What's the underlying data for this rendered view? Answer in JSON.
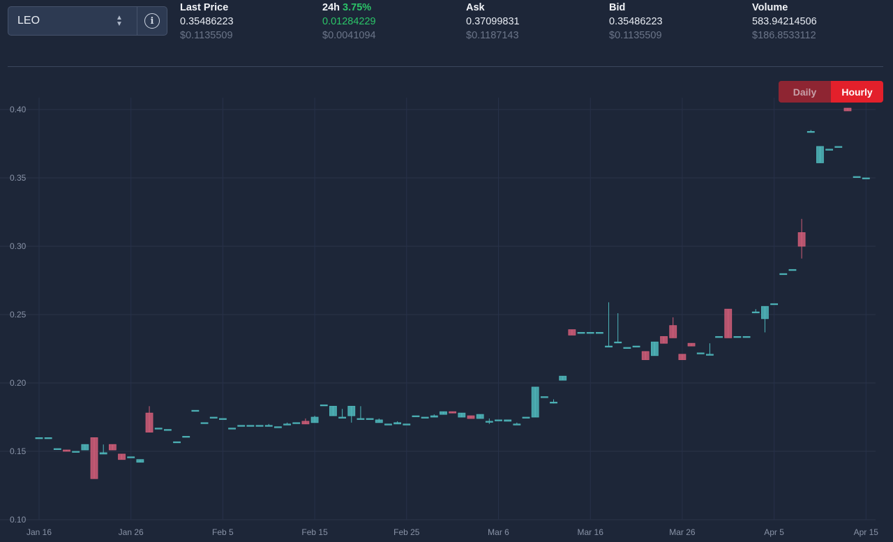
{
  "selector": {
    "symbol": "LEO",
    "chevron_icon": "chevron-up-down-icon",
    "info_icon": "info-icon"
  },
  "stats": {
    "last_price": {
      "label": "Last Price",
      "value": "0.35486223",
      "usd": "$0.1135509"
    },
    "change_24h": {
      "label": "24h",
      "percent": "3.75%",
      "value": "0.01284229",
      "usd": "$0.0041094"
    },
    "ask": {
      "label": "Ask",
      "value": "0.37099831",
      "usd": "$0.1187143"
    },
    "bid": {
      "label": "Bid",
      "value": "0.35486223",
      "usd": "$0.1135509"
    },
    "volume": {
      "label": "Volume",
      "value": "583.94214506",
      "usd": "$186.8533112"
    }
  },
  "toggle": {
    "daily_label": "Daily",
    "hourly_label": "Hourly",
    "active": "hourly"
  },
  "colors": {
    "up": "#4fb8bc",
    "down": "#d05d78",
    "accent": "#e3202b",
    "positive_text": "#2bc468"
  },
  "chart_data": {
    "type": "candlestick",
    "ylim": [
      0.1,
      0.4
    ],
    "y_ticks": [
      "0.10",
      "0.15",
      "0.20",
      "0.25",
      "0.30",
      "0.35",
      "0.40"
    ],
    "x_ticks": [
      {
        "label": "Jan 16",
        "day": 0
      },
      {
        "label": "Jan 26",
        "day": 10
      },
      {
        "label": "Feb 5",
        "day": 20
      },
      {
        "label": "Feb 15",
        "day": 30
      },
      {
        "label": "Feb 25",
        "day": 40
      },
      {
        "label": "Mar 6",
        "day": 50
      },
      {
        "label": "Mar 16",
        "day": 60
      },
      {
        "label": "Mar 26",
        "day": 70
      },
      {
        "label": "Apr 5",
        "day": 80
      },
      {
        "label": "Apr 15",
        "day": 90
      }
    ],
    "grid": true,
    "candles": [
      [
        0,
        0.16,
        0.16,
        0.16,
        0.16
      ],
      [
        1,
        0.16,
        0.16,
        0.16,
        0.16
      ],
      [
        2,
        0.152,
        0.152,
        0.152,
        0.152
      ],
      [
        3,
        0.151,
        0.151,
        0.15,
        0.15
      ],
      [
        4,
        0.15,
        0.15,
        0.15,
        0.15
      ],
      [
        5,
        0.151,
        0.155,
        0.151,
        0.155
      ],
      [
        6,
        0.16,
        0.16,
        0.13,
        0.13
      ],
      [
        7,
        0.148,
        0.155,
        0.148,
        0.149
      ],
      [
        8,
        0.155,
        0.155,
        0.151,
        0.151
      ],
      [
        9,
        0.148,
        0.148,
        0.144,
        0.144
      ],
      [
        10,
        0.146,
        0.146,
        0.146,
        0.146
      ],
      [
        11,
        0.142,
        0.144,
        0.142,
        0.144
      ],
      [
        12,
        0.178,
        0.183,
        0.164,
        0.164
      ],
      [
        13,
        0.167,
        0.167,
        0.167,
        0.167
      ],
      [
        14,
        0.166,
        0.166,
        0.166,
        0.166
      ],
      [
        15,
        0.157,
        0.157,
        0.157,
        0.157
      ],
      [
        16,
        0.161,
        0.161,
        0.161,
        0.161
      ],
      [
        17,
        0.18,
        0.18,
        0.18,
        0.18
      ],
      [
        18,
        0.171,
        0.171,
        0.171,
        0.171
      ],
      [
        19,
        0.175,
        0.175,
        0.175,
        0.175
      ],
      [
        20,
        0.174,
        0.174,
        0.174,
        0.174
      ],
      [
        21,
        0.167,
        0.167,
        0.167,
        0.167
      ],
      [
        22,
        0.169,
        0.169,
        0.169,
        0.169
      ],
      [
        23,
        0.169,
        0.169,
        0.169,
        0.169
      ],
      [
        24,
        0.169,
        0.169,
        0.169,
        0.169
      ],
      [
        25,
        0.169,
        0.17,
        0.169,
        0.169
      ],
      [
        26,
        0.168,
        0.168,
        0.168,
        0.168
      ],
      [
        27,
        0.17,
        0.171,
        0.17,
        0.17
      ],
      [
        28,
        0.171,
        0.171,
        0.171,
        0.171
      ],
      [
        29,
        0.172,
        0.174,
        0.17,
        0.17
      ],
      [
        30,
        0.171,
        0.176,
        0.171,
        0.175
      ],
      [
        31,
        0.184,
        0.184,
        0.184,
        0.184
      ],
      [
        32,
        0.176,
        0.183,
        0.176,
        0.183
      ],
      [
        33,
        0.175,
        0.181,
        0.175,
        0.175
      ],
      [
        34,
        0.176,
        0.183,
        0.171,
        0.183
      ],
      [
        35,
        0.174,
        0.183,
        0.174,
        0.174
      ],
      [
        36,
        0.174,
        0.174,
        0.174,
        0.174
      ],
      [
        37,
        0.171,
        0.174,
        0.171,
        0.173
      ],
      [
        38,
        0.17,
        0.17,
        0.17,
        0.17
      ],
      [
        39,
        0.17,
        0.172,
        0.17,
        0.171
      ],
      [
        40,
        0.17,
        0.17,
        0.17,
        0.17
      ],
      [
        41,
        0.176,
        0.176,
        0.176,
        0.176
      ],
      [
        42,
        0.175,
        0.175,
        0.175,
        0.175
      ],
      [
        43,
        0.175,
        0.177,
        0.175,
        0.176
      ],
      [
        44,
        0.177,
        0.179,
        0.177,
        0.179
      ],
      [
        45,
        0.179,
        0.179,
        0.178,
        0.178
      ],
      [
        46,
        0.175,
        0.178,
        0.175,
        0.178
      ],
      [
        47,
        0.176,
        0.176,
        0.174,
        0.174
      ],
      [
        48,
        0.174,
        0.177,
        0.174,
        0.177
      ],
      [
        49,
        0.172,
        0.174,
        0.17,
        0.172
      ],
      [
        50,
        0.173,
        0.173,
        0.173,
        0.173
      ],
      [
        51,
        0.172,
        0.172,
        0.172,
        0.173
      ],
      [
        52,
        0.17,
        0.171,
        0.17,
        0.17
      ],
      [
        53,
        0.175,
        0.175,
        0.175,
        0.175
      ],
      [
        54,
        0.175,
        0.197,
        0.175,
        0.197
      ],
      [
        55,
        0.19,
        0.19,
        0.19,
        0.19
      ],
      [
        56,
        0.186,
        0.188,
        0.185,
        0.186
      ],
      [
        57,
        0.202,
        0.205,
        0.202,
        0.205
      ],
      [
        58,
        0.239,
        0.239,
        0.235,
        0.235
      ],
      [
        59,
        0.237,
        0.237,
        0.237,
        0.237
      ],
      [
        60,
        0.237,
        0.237,
        0.237,
        0.237
      ],
      [
        61,
        0.237,
        0.237,
        0.237,
        0.237
      ],
      [
        62,
        0.227,
        0.259,
        0.227,
        0.227
      ],
      [
        63,
        0.23,
        0.251,
        0.23,
        0.23
      ],
      [
        64,
        0.226,
        0.226,
        0.226,
        0.226
      ],
      [
        65,
        0.227,
        0.227,
        0.227,
        0.227
      ],
      [
        66,
        0.223,
        0.223,
        0.217,
        0.217
      ],
      [
        67,
        0.22,
        0.23,
        0.22,
        0.23
      ],
      [
        68,
        0.234,
        0.234,
        0.229,
        0.229
      ],
      [
        69,
        0.242,
        0.248,
        0.233,
        0.233
      ],
      [
        70,
        0.221,
        0.221,
        0.217,
        0.217
      ],
      [
        71,
        0.229,
        0.229,
        0.227,
        0.227
      ],
      [
        72,
        0.222,
        0.222,
        0.222,
        0.222
      ],
      [
        73,
        0.221,
        0.229,
        0.221,
        0.221
      ],
      [
        74,
        0.234,
        0.234,
        0.234,
        0.234
      ],
      [
        75,
        0.254,
        0.254,
        0.233,
        0.233
      ],
      [
        76,
        0.234,
        0.234,
        0.234,
        0.234
      ],
      [
        77,
        0.234,
        0.234,
        0.234,
        0.234
      ],
      [
        78,
        0.252,
        0.254,
        0.252,
        0.252
      ],
      [
        79,
        0.247,
        0.256,
        0.237,
        0.256
      ],
      [
        80,
        0.258,
        0.258,
        0.258,
        0.258
      ],
      [
        81,
        0.28,
        0.28,
        0.28,
        0.28
      ],
      [
        82,
        0.283,
        0.283,
        0.283,
        0.283
      ],
      [
        83,
        0.31,
        0.32,
        0.291,
        0.3
      ],
      [
        84,
        0.384,
        0.385,
        0.384,
        0.384
      ],
      [
        85,
        0.361,
        0.373,
        0.361,
        0.373
      ],
      [
        86,
        0.371,
        0.371,
        0.371,
        0.371
      ],
      [
        87,
        0.373,
        0.373,
        0.373,
        0.373
      ],
      [
        88,
        0.401,
        0.401,
        0.399,
        0.399
      ],
      [
        89,
        0.351,
        0.351,
        0.351,
        0.351
      ],
      [
        90,
        0.35,
        0.35,
        0.35,
        0.35
      ]
    ]
  }
}
